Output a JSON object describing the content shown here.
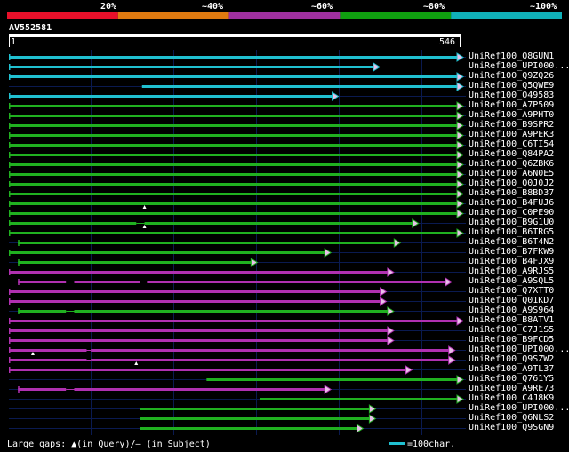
{
  "scale_labels": [
    "20%",
    "~40%",
    "~60%",
    "~80%",
    "~100%"
  ],
  "scale_colors": [
    "#e8102a",
    "#e07a10",
    "#a030a0",
    "#10a010",
    "#10b0b8"
  ],
  "query": {
    "name": "AV552581",
    "start": "1",
    "end": "546"
  },
  "footer": {
    "gaps_text": "Large gaps: ▲(in Query)/– (in Subject)",
    "legend_text": "=100char."
  },
  "chart_data": {
    "type": "alignment",
    "query_length": 546,
    "hits": [
      {
        "name": "UniRef100_Q8GUN1",
        "start": 1,
        "end": 546,
        "color": "cyan"
      },
      {
        "name": "UniRef100_UPI000...",
        "start": 1,
        "end": 445,
        "color": "cyan"
      },
      {
        "name": "UniRef100_Q9ZQ26",
        "start": 1,
        "end": 546,
        "color": "cyan"
      },
      {
        "name": "UniRef100_Q5QWE9",
        "start": 162,
        "end": 546,
        "color": "cyan"
      },
      {
        "name": "UniRef100_O49583",
        "start": 1,
        "end": 395,
        "color": "cyan"
      },
      {
        "name": "UniRef100_A7P509",
        "start": 1,
        "end": 546,
        "color": "green"
      },
      {
        "name": "UniRef100_A9PHT0",
        "start": 1,
        "end": 546,
        "color": "green"
      },
      {
        "name": "UniRef100_B9SPR2",
        "start": 1,
        "end": 546,
        "color": "green"
      },
      {
        "name": "UniRef100_A9PEK3",
        "start": 1,
        "end": 546,
        "color": "green"
      },
      {
        "name": "UniRef100_C6TI54",
        "start": 1,
        "end": 546,
        "color": "green"
      },
      {
        "name": "UniRef100_Q84PA2",
        "start": 1,
        "end": 546,
        "color": "green"
      },
      {
        "name": "UniRef100_Q6ZBK6",
        "start": 1,
        "end": 546,
        "color": "green"
      },
      {
        "name": "UniRef100_A6N0E5",
        "start": 1,
        "end": 546,
        "color": "green"
      },
      {
        "name": "UniRef100_Q0J0J2",
        "start": 1,
        "end": 546,
        "color": "green"
      },
      {
        "name": "UniRef100_B8BD37",
        "start": 1,
        "end": 546,
        "color": "green"
      },
      {
        "name": "UniRef100_B4FUJ6",
        "start": 1,
        "end": 546,
        "color": "green"
      },
      {
        "name": "UniRef100_C0PE90",
        "start": 1,
        "end": 546,
        "color": "green",
        "query_gaps": [
          165
        ]
      },
      {
        "name": "UniRef100_B9G1U0",
        "start": 1,
        "end": 492,
        "color": "green",
        "subject_gaps": [
          [
            155,
            165
          ]
        ]
      },
      {
        "name": "UniRef100_B6TRG5",
        "start": 1,
        "end": 546,
        "color": "green",
        "query_gaps": [
          165
        ]
      },
      {
        "name": "UniRef100_B6T4N2",
        "start": 12,
        "end": 470,
        "color": "green"
      },
      {
        "name": "UniRef100_B7FKW9",
        "start": 1,
        "end": 386,
        "color": "green"
      },
      {
        "name": "UniRef100_B4FJX9",
        "start": 12,
        "end": 297,
        "color": "green"
      },
      {
        "name": "UniRef100_A9RJS5",
        "start": 1,
        "end": 462,
        "color": "magenta"
      },
      {
        "name": "UniRef100_A9SQL5",
        "start": 12,
        "end": 532,
        "color": "magenta",
        "subject_gaps": [
          [
            70,
            80
          ],
          [
            160,
            168
          ]
        ]
      },
      {
        "name": "UniRef100_Q7XTT0",
        "start": 1,
        "end": 453,
        "color": "magenta"
      },
      {
        "name": "UniRef100_Q01KD7",
        "start": 1,
        "end": 453,
        "color": "magenta"
      },
      {
        "name": "UniRef100_A9S964",
        "start": 12,
        "end": 462,
        "color": "green",
        "subject_gaps": [
          [
            70,
            80
          ]
        ]
      },
      {
        "name": "UniRef100_B8ATV1",
        "start": 1,
        "end": 546,
        "color": "magenta"
      },
      {
        "name": "UniRef100_C7J1S5",
        "start": 1,
        "end": 462,
        "color": "magenta"
      },
      {
        "name": "UniRef100_B9FCD5",
        "start": 1,
        "end": 462,
        "color": "magenta"
      },
      {
        "name": "UniRef100_UPI000...",
        "start": 1,
        "end": 536,
        "color": "magenta",
        "subject_gaps": [
          [
            95,
            100
          ]
        ]
      },
      {
        "name": "UniRef100_Q9SZW2",
        "start": 1,
        "end": 536,
        "color": "magenta",
        "query_gaps": [
          30
        ],
        "subject_gaps": [
          [
            95,
            100
          ]
        ]
      },
      {
        "name": "UniRef100_A9TL37",
        "start": 1,
        "end": 484,
        "color": "magenta",
        "query_gaps": [
          155
        ]
      },
      {
        "name": "UniRef100_Q761Y5",
        "start": 240,
        "end": 546,
        "color": "green"
      },
      {
        "name": "UniRef100_A9RE73",
        "start": 12,
        "end": 386,
        "color": "magenta",
        "subject_gaps": [
          [
            70,
            80
          ]
        ]
      },
      {
        "name": "UniRef100_C4J8K9",
        "start": 305,
        "end": 546,
        "color": "green"
      },
      {
        "name": "UniRef100_UPI000...",
        "start": 160,
        "end": 440,
        "color": "green"
      },
      {
        "name": "UniRef100_Q6NLS2",
        "start": 160,
        "end": 440,
        "color": "green"
      },
      {
        "name": "UniRef100_Q9SGN9",
        "start": 160,
        "end": 425,
        "color": "green"
      }
    ]
  }
}
